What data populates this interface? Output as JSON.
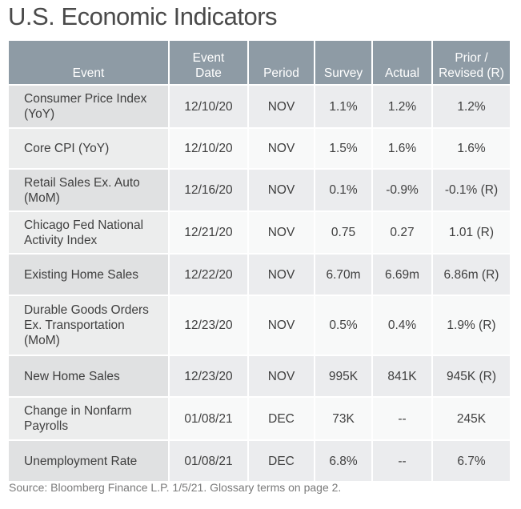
{
  "title": "U.S. Economic Indicators",
  "table": {
    "headers": {
      "event": "Event",
      "event_date": [
        "Event",
        "Date"
      ],
      "period": "Period",
      "survey": "Survey",
      "actual": "Actual",
      "prior": [
        "Prior /",
        "Revised (R)"
      ]
    },
    "rows": [
      {
        "event": [
          "Consumer Price Index",
          "(YoY)"
        ],
        "date": "12/10/20",
        "period": "NOV",
        "survey": "1.1%",
        "actual": "1.2%",
        "prior": "1.2%"
      },
      {
        "event": [
          "Core CPI (YoY)"
        ],
        "date": "12/10/20",
        "period": "NOV",
        "survey": "1.5%",
        "actual": "1.6%",
        "prior": "1.6%"
      },
      {
        "event": [
          "Retail Sales Ex. Auto",
          "(MoM)"
        ],
        "date": "12/16/20",
        "period": "NOV",
        "survey": "0.1%",
        "actual": "-0.9%",
        "prior": "-0.1% (R)"
      },
      {
        "event": [
          "Chicago Fed National",
          "Activity Index"
        ],
        "date": "12/21/20",
        "period": "NOV",
        "survey": "0.75",
        "actual": "0.27",
        "prior": "1.01 (R)"
      },
      {
        "event": [
          "Existing Home Sales"
        ],
        "date": "12/22/20",
        "period": "NOV",
        "survey": "6.70m",
        "actual": "6.69m",
        "prior": "6.86m (R)"
      },
      {
        "event": [
          "Durable Goods Orders",
          "Ex. Transportation",
          "(MoM)"
        ],
        "date": "12/23/20",
        "period": "NOV",
        "survey": "0.5%",
        "actual": "0.4%",
        "prior": "1.9% (R)"
      },
      {
        "event": [
          "New Home Sales"
        ],
        "date": "12/23/20",
        "period": "NOV",
        "survey": "995K",
        "actual": "841K",
        "prior": "945K (R)"
      },
      {
        "event": [
          "Change in Nonfarm",
          "Payrolls"
        ],
        "date": "01/08/21",
        "period": "DEC",
        "survey": "73K",
        "actual": "--",
        "prior": "245K"
      },
      {
        "event": [
          "Unemployment Rate"
        ],
        "date": "01/08/21",
        "period": "DEC",
        "survey": "6.8%",
        "actual": "--",
        "prior": "6.7%"
      }
    ]
  },
  "source": "Source: Bloomberg Finance L.P. 1/5/21. Glossary terms on page 2.",
  "colors": {
    "header_bg": "#8e9ba5",
    "header_text": "#ffffff"
  }
}
